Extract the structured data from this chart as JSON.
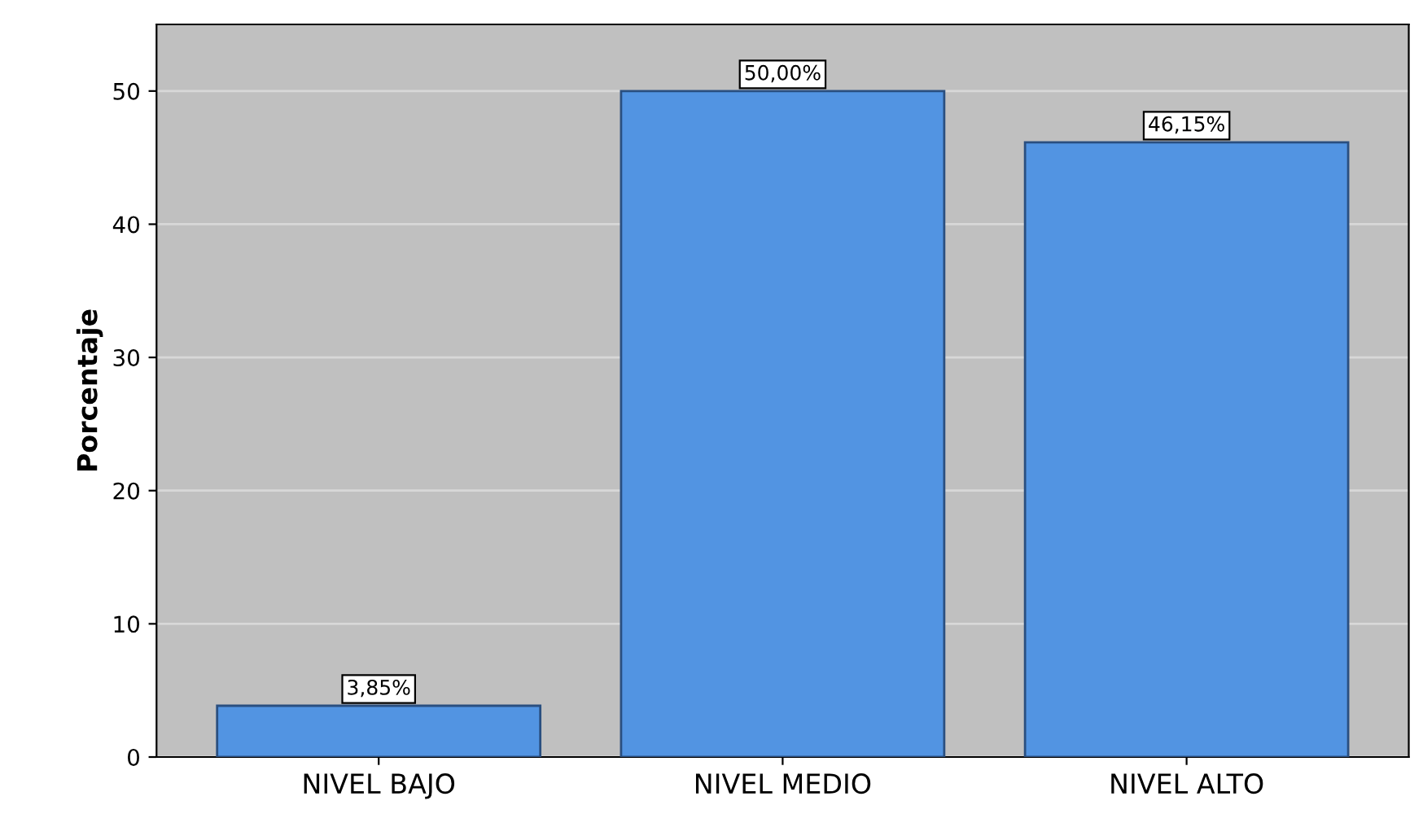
{
  "chart_data": {
    "type": "bar",
    "ylabel": "Porcentaje",
    "categories": [
      "NIVEL BAJO",
      "NIVEL MEDIO",
      "NIVEL ALTO"
    ],
    "values": [
      3.85,
      50.0,
      46.15
    ],
    "value_labels": [
      "3,85%",
      "50,00%",
      "46,15%"
    ],
    "color": "#5294e2",
    "ylim": [
      0,
      55
    ],
    "yticks": [
      0,
      10,
      20,
      30,
      40,
      50
    ],
    "grid": "y"
  }
}
